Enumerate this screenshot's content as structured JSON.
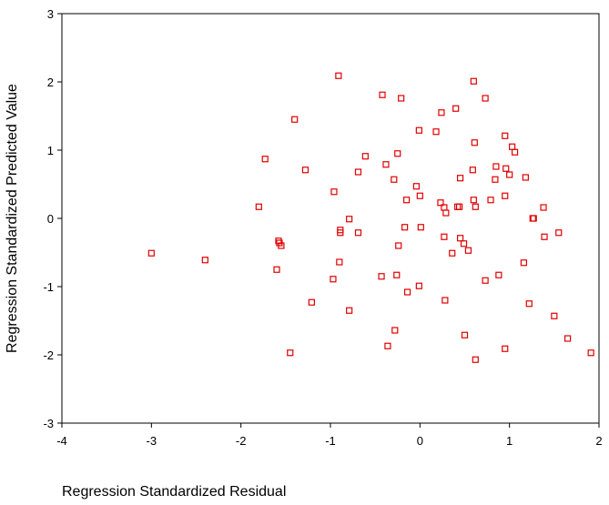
{
  "chart_data": {
    "type": "scatter",
    "x_label": "Regression Standardized Residual",
    "y_label": "Regression Standardized Predicted Value",
    "color": "#e00000",
    "x": [
      -3.0,
      -2.4,
      -0.91,
      -0.42,
      -0.21,
      0.6,
      0.4,
      0.24,
      0.73,
      -1.4,
      -0.01,
      0.18,
      0.95,
      0.61,
      1.03,
      1.06,
      -0.61,
      -0.25,
      -1.73,
      -1.28,
      -0.38,
      -0.69,
      0.85,
      0.59,
      0.96,
      1.0,
      1.18,
      0.45,
      -0.29,
      0.84,
      -0.04,
      -0.96,
      0.0,
      -0.15,
      0.95,
      0.79,
      0.6,
      0.23,
      0.27,
      0.44,
      0.42,
      0.62,
      1.38,
      -1.8,
      0.29,
      -0.79,
      1.26,
      1.27,
      -0.89,
      -0.89,
      -0.69,
      -0.17,
      0.01,
      -1.58,
      -1.57,
      -1.55,
      0.27,
      0.45,
      0.49,
      0.54,
      0.36,
      -0.24,
      1.39,
      1.55,
      -1.6,
      1.16,
      -0.9,
      -0.26,
      -0.43,
      -0.97,
      0.88,
      0.73,
      -0.01,
      -0.14,
      -1.21,
      0.28,
      1.22,
      -0.79,
      1.5,
      -0.28,
      0.5,
      1.65,
      -0.36,
      0.95,
      -1.45,
      1.91,
      0.62
    ],
    "values": [
      -0.51,
      -0.61,
      2.09,
      1.81,
      1.76,
      2.01,
      1.61,
      1.55,
      1.76,
      1.45,
      1.29,
      1.27,
      1.21,
      1.11,
      1.05,
      0.97,
      0.91,
      0.95,
      0.87,
      0.71,
      0.79,
      0.68,
      0.76,
      0.71,
      0.73,
      0.64,
      0.6,
      0.59,
      0.57,
      0.57,
      0.47,
      0.39,
      0.33,
      0.27,
      0.33,
      0.27,
      0.27,
      0.23,
      0.16,
      0.17,
      0.17,
      0.17,
      0.16,
      0.17,
      0.08,
      -0.01,
      0.0,
      0.0,
      -0.17,
      -0.21,
      -0.21,
      -0.13,
      -0.13,
      -0.33,
      -0.36,
      -0.4,
      -0.27,
      -0.29,
      -0.37,
      -0.47,
      -0.51,
      -0.4,
      -0.27,
      -0.21,
      -0.75,
      -0.65,
      -0.64,
      -0.83,
      -0.85,
      -0.89,
      -0.83,
      -0.91,
      -0.99,
      -1.08,
      -1.23,
      -1.2,
      -1.25,
      -1.35,
      -1.43,
      -1.64,
      -1.71,
      -1.76,
      -1.87,
      -1.91,
      -1.97,
      -1.97,
      -2.07
    ],
    "xlim": [
      -4,
      2
    ],
    "xticks": [
      -4,
      -3,
      -2,
      -1,
      0,
      1,
      2
    ],
    "ylim": [
      -3,
      3
    ],
    "yticks": [
      -3,
      -2,
      -1,
      0,
      1,
      2,
      3
    ]
  }
}
